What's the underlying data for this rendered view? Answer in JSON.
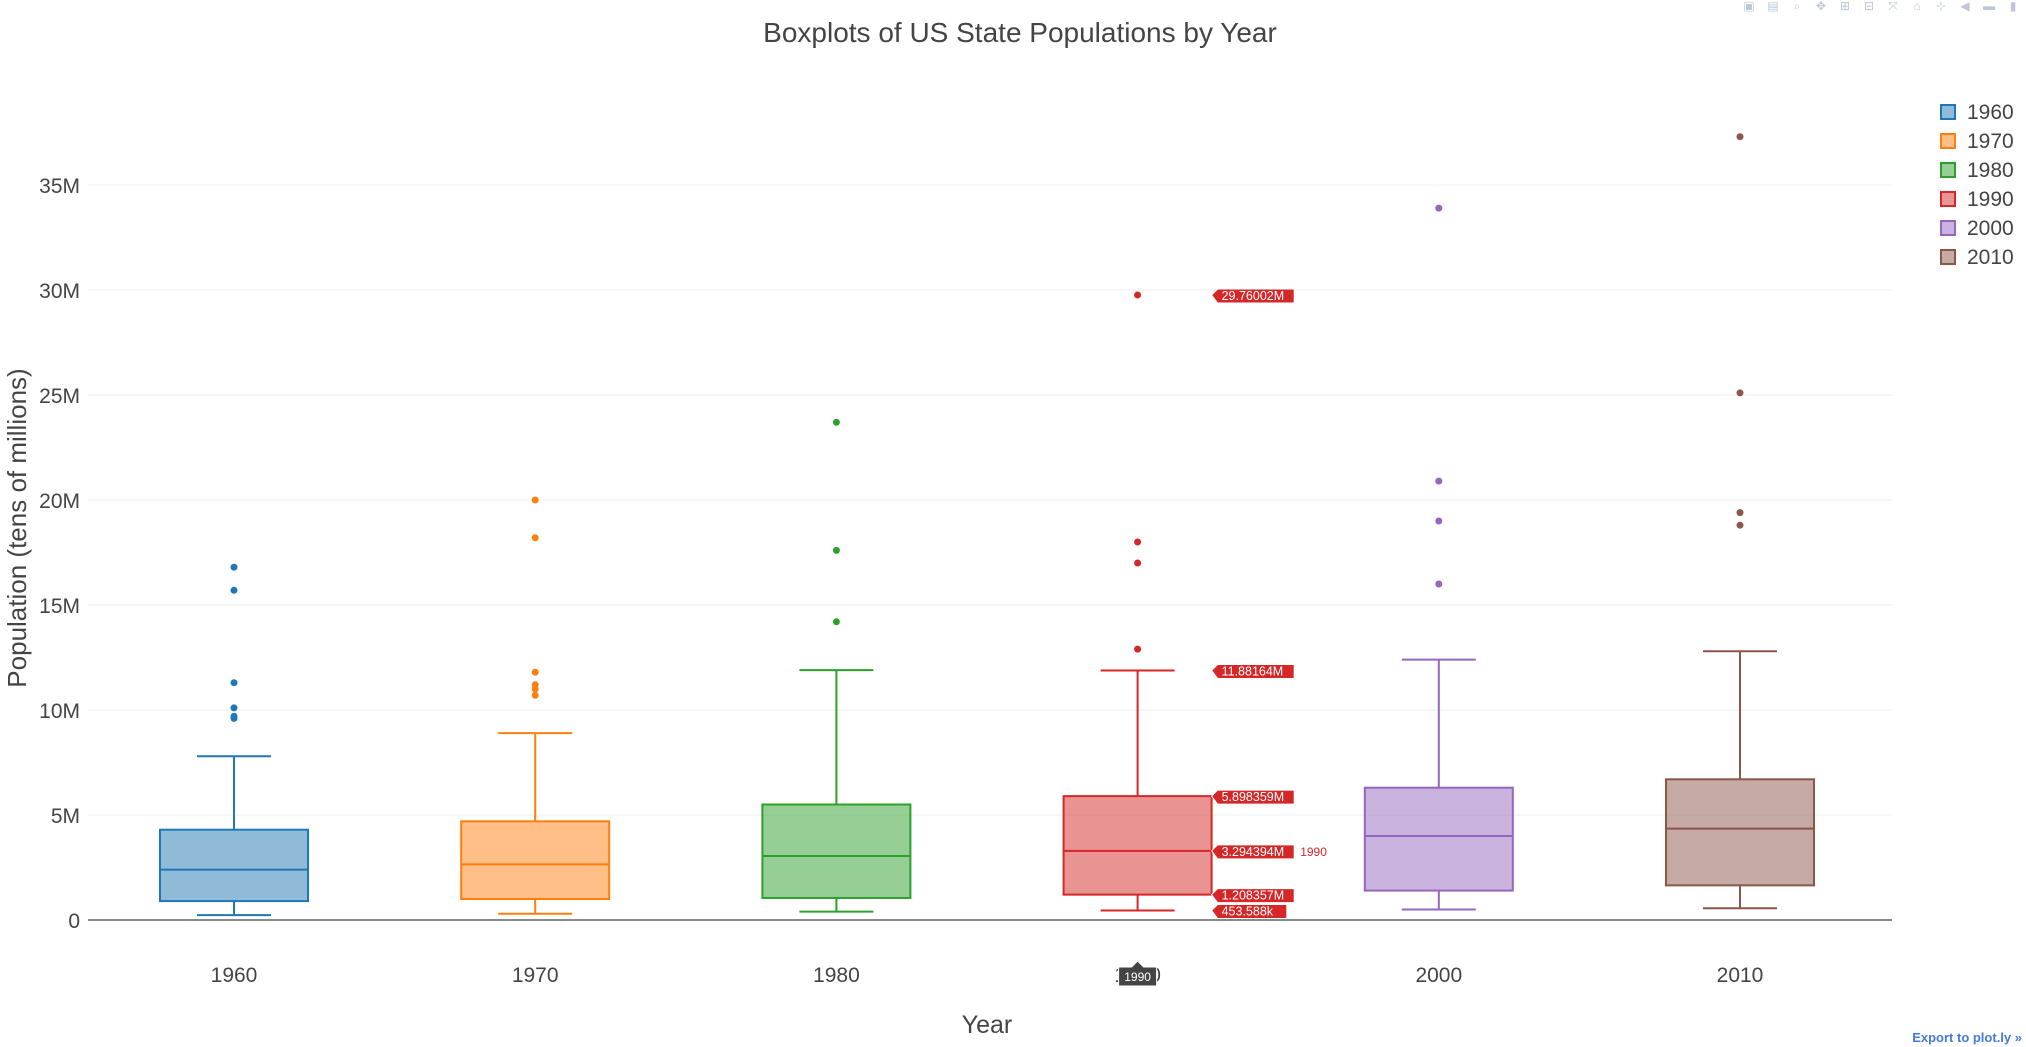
{
  "chart_data": {
    "type": "box",
    "title": "Boxplots of US State Populations by Year",
    "xlabel": "Year",
    "ylabel": "Population (tens of millions)",
    "ylim": [
      -1500000,
      39000000
    ],
    "yticks": [
      0,
      5000000,
      10000000,
      15000000,
      20000000,
      25000000,
      30000000,
      35000000
    ],
    "ytick_labels": [
      "0",
      "5M",
      "10M",
      "15M",
      "20M",
      "25M",
      "30M",
      "35M"
    ],
    "grid": true,
    "legend_position": "top-right",
    "categories": [
      "1960",
      "1970",
      "1980",
      "1990",
      "2000",
      "2010"
    ],
    "series": [
      {
        "name": "1960",
        "color": "#1f77b4",
        "lowerfence": 230000,
        "q1": 900000,
        "median": 2400000,
        "q3": 4300000,
        "upperfence": 7800000,
        "outliers": [
          9600000,
          9700000,
          10100000,
          11300000,
          15700000,
          16800000
        ]
      },
      {
        "name": "1970",
        "color": "#ff7f0e",
        "lowerfence": 300000,
        "q1": 1000000,
        "median": 2650000,
        "q3": 4700000,
        "upperfence": 8900000,
        "outliers": [
          10700000,
          11000000,
          11200000,
          11800000,
          18200000,
          20000000
        ]
      },
      {
        "name": "1980",
        "color": "#2ca02c",
        "lowerfence": 400000,
        "q1": 1050000,
        "median": 3050000,
        "q3": 5500000,
        "upperfence": 11900000,
        "outliers": [
          14200000,
          17600000,
          23700000
        ]
      },
      {
        "name": "1990",
        "color": "#d62728",
        "lowerfence": 453588,
        "q1": 1208357,
        "median": 3294394,
        "q3": 5898359,
        "upperfence": 11881640,
        "outliers": [
          12900000,
          17000000,
          18000000,
          29760020
        ]
      },
      {
        "name": "2000",
        "color": "#9467bd",
        "lowerfence": 500000,
        "q1": 1400000,
        "median": 4000000,
        "q3": 6300000,
        "upperfence": 12400000,
        "outliers": [
          16000000,
          19000000,
          20900000,
          33900000
        ]
      },
      {
        "name": "2010",
        "color": "#8c564b",
        "lowerfence": 560000,
        "q1": 1650000,
        "median": 4350000,
        "q3": 6700000,
        "upperfence": 12800000,
        "outliers": [
          18800000,
          19400000,
          25100000,
          37300000
        ]
      }
    ],
    "hover": {
      "category": "1990",
      "x_label": "1990",
      "trace_name": "1990",
      "labels": [
        {
          "value": 29760020,
          "text": "29.76002M"
        },
        {
          "value": 11881640,
          "text": "11.88164M"
        },
        {
          "value": 5898359,
          "text": "5.898359M"
        },
        {
          "value": 3294394,
          "text": "3.294394M"
        },
        {
          "value": 1208357,
          "text": "1.208357M"
        },
        {
          "value": 453588,
          "text": "453.588k"
        }
      ]
    }
  },
  "export_link": "Export to plot.ly »",
  "modebar_icons": [
    "camera-icon",
    "save-icon",
    "zoom-icon",
    "pan-icon",
    "zoom-in-icon",
    "zoom-out-icon",
    "autoscale-icon",
    "home-icon",
    "spike-icon",
    "hover-closest-icon",
    "hover-compare-icon",
    "plotly-logo-icon"
  ]
}
